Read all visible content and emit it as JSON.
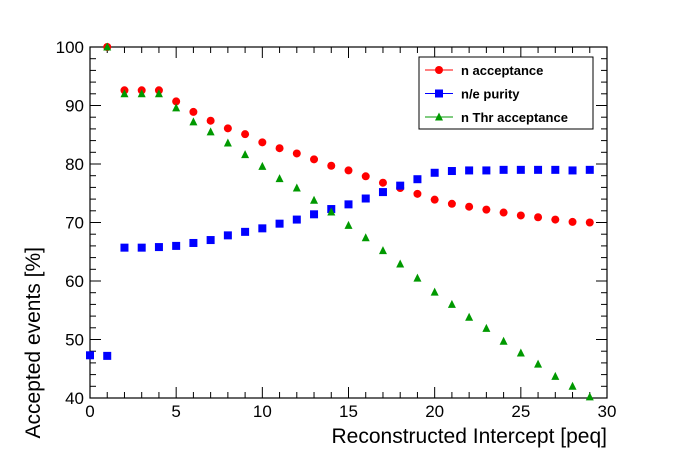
{
  "chart_data": {
    "type": "scatter",
    "xlabel": "Reconstructed Intercept [peq]",
    "ylabel": "Accepted events [%]",
    "xlim": [
      0,
      30
    ],
    "ylim": [
      40,
      100
    ],
    "x_ticks": [
      "0",
      "5",
      "10",
      "15",
      "20",
      "25",
      "30"
    ],
    "y_ticks": [
      "40",
      "50",
      "60",
      "70",
      "80",
      "90",
      "100"
    ],
    "grid": false,
    "legend_position": "top-right",
    "series": [
      {
        "name": "n acceptance",
        "color": "#ff0000",
        "marker": "circle",
        "x": [
          1,
          2,
          3,
          4,
          5,
          6,
          7,
          8,
          9,
          10,
          11,
          12,
          13,
          14,
          15,
          16,
          17,
          18,
          19,
          20,
          21,
          22,
          23,
          24,
          25,
          26,
          27,
          28,
          29
        ],
        "y": [
          100,
          92.6,
          92.6,
          92.6,
          90.7,
          88.9,
          87.4,
          86.1,
          85.1,
          83.7,
          82.7,
          81.8,
          80.8,
          79.7,
          78.9,
          77.9,
          76.8,
          75.9,
          74.9,
          73.9,
          73.2,
          72.7,
          72.2,
          71.7,
          71.2,
          70.9,
          70.5,
          70.1,
          70.0
        ]
      },
      {
        "name": "n/e purity",
        "color": "#0000ff",
        "marker": "square",
        "x": [
          0,
          1,
          2,
          3,
          4,
          5,
          6,
          7,
          8,
          9,
          10,
          11,
          12,
          13,
          14,
          15,
          16,
          17,
          18,
          19,
          20,
          21,
          22,
          23,
          24,
          25,
          26,
          27,
          28,
          29
        ],
        "y": [
          47.3,
          47.2,
          65.7,
          65.7,
          65.8,
          66.0,
          66.5,
          67.0,
          67.8,
          68.4,
          69.0,
          69.8,
          70.5,
          71.4,
          72.3,
          73.1,
          74.1,
          75.2,
          76.3,
          77.4,
          78.5,
          78.8,
          78.9,
          78.9,
          79.0,
          79.0,
          79.0,
          79.0,
          78.9,
          79.0
        ]
      },
      {
        "name": "n Thr acceptance",
        "color": "#009900",
        "marker": "triangle",
        "x": [
          1,
          2,
          3,
          4,
          5,
          6,
          7,
          8,
          9,
          10,
          11,
          12,
          13,
          14,
          15,
          16,
          17,
          18,
          19,
          20,
          21,
          22,
          23,
          24,
          25,
          26,
          27,
          28,
          29
        ],
        "y": [
          100,
          92.0,
          92.0,
          92.0,
          89.6,
          87.2,
          85.5,
          83.6,
          81.6,
          79.6,
          77.5,
          75.9,
          73.8,
          71.8,
          69.5,
          67.4,
          65.2,
          62.9,
          60.5,
          58.1,
          56.0,
          53.8,
          51.9,
          49.7,
          47.7,
          45.8,
          43.7,
          42.0,
          40.2
        ]
      }
    ]
  }
}
